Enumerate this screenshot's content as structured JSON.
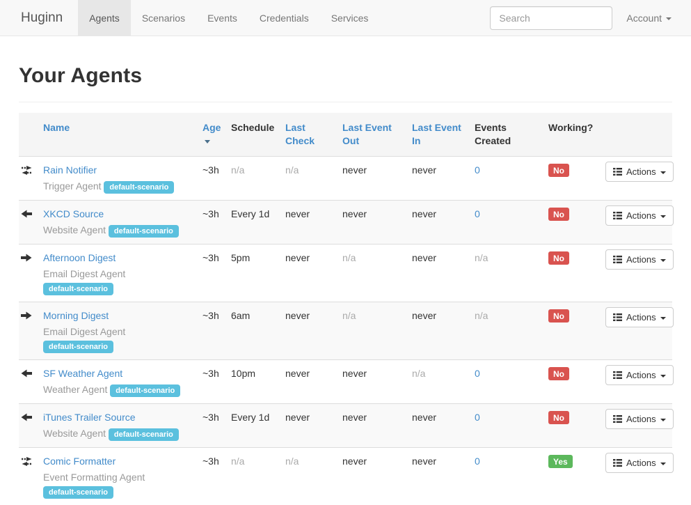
{
  "navbar": {
    "brand": "Huginn",
    "items": [
      {
        "label": "Agents",
        "active": true
      },
      {
        "label": "Scenarios",
        "active": false
      },
      {
        "label": "Events",
        "active": false
      },
      {
        "label": "Credentials",
        "active": false
      },
      {
        "label": "Services",
        "active": false
      }
    ],
    "search_placeholder": "Search",
    "account_label": "Account"
  },
  "page": {
    "title": "Your Agents"
  },
  "colors": {
    "link": "#428bca",
    "scenario_badge": "#5bc0de",
    "working_no": "#d9534f",
    "working_yes": "#5cb85c"
  },
  "table": {
    "headers": {
      "name": "Name",
      "age": "Age",
      "schedule": "Schedule",
      "last_check": "Last Check",
      "last_event_out": "Last Event Out",
      "last_event_in": "Last Event In",
      "events_created": "Events Created",
      "working": "Working?"
    },
    "actions_label": "Actions",
    "rows": [
      {
        "icon": "exchange",
        "name": "Rain Notifier",
        "type": "Trigger Agent",
        "scenario": "default-scenario",
        "age": "~3h",
        "schedule": "n/a",
        "last_check": "n/a",
        "last_event_out": "never",
        "last_event_in": "never",
        "events_created": "0",
        "working": "No"
      },
      {
        "icon": "arrow-left",
        "name": "XKCD Source",
        "type": "Website Agent",
        "scenario": "default-scenario",
        "age": "~3h",
        "schedule": "Every 1d",
        "last_check": "never",
        "last_event_out": "never",
        "last_event_in": "never",
        "events_created": "0",
        "working": "No"
      },
      {
        "icon": "arrow-right",
        "name": "Afternoon Digest",
        "type": "Email Digest Agent",
        "scenario": "default-scenario",
        "age": "~3h",
        "schedule": "5pm",
        "last_check": "never",
        "last_event_out": "n/a",
        "last_event_in": "never",
        "events_created": "n/a",
        "working": "No"
      },
      {
        "icon": "arrow-right",
        "name": "Morning Digest",
        "type": "Email Digest Agent",
        "scenario": "default-scenario",
        "age": "~3h",
        "schedule": "6am",
        "last_check": "never",
        "last_event_out": "n/a",
        "last_event_in": "never",
        "events_created": "n/a",
        "working": "No"
      },
      {
        "icon": "arrow-left",
        "name": "SF Weather Agent",
        "type": "Weather Agent",
        "scenario": "default-scenario",
        "age": "~3h",
        "schedule": "10pm",
        "last_check": "never",
        "last_event_out": "never",
        "last_event_in": "n/a",
        "events_created": "0",
        "working": "No"
      },
      {
        "icon": "arrow-left",
        "name": "iTunes Trailer Source",
        "type": "Website Agent",
        "scenario": "default-scenario",
        "age": "~3h",
        "schedule": "Every 1d",
        "last_check": "never",
        "last_event_out": "never",
        "last_event_in": "never",
        "events_created": "0",
        "working": "No"
      },
      {
        "icon": "exchange",
        "name": "Comic Formatter",
        "type": "Event Formatting Agent",
        "scenario": "default-scenario",
        "age": "~3h",
        "schedule": "n/a",
        "last_check": "n/a",
        "last_event_out": "never",
        "last_event_in": "never",
        "events_created": "0",
        "working": "Yes"
      }
    ]
  }
}
